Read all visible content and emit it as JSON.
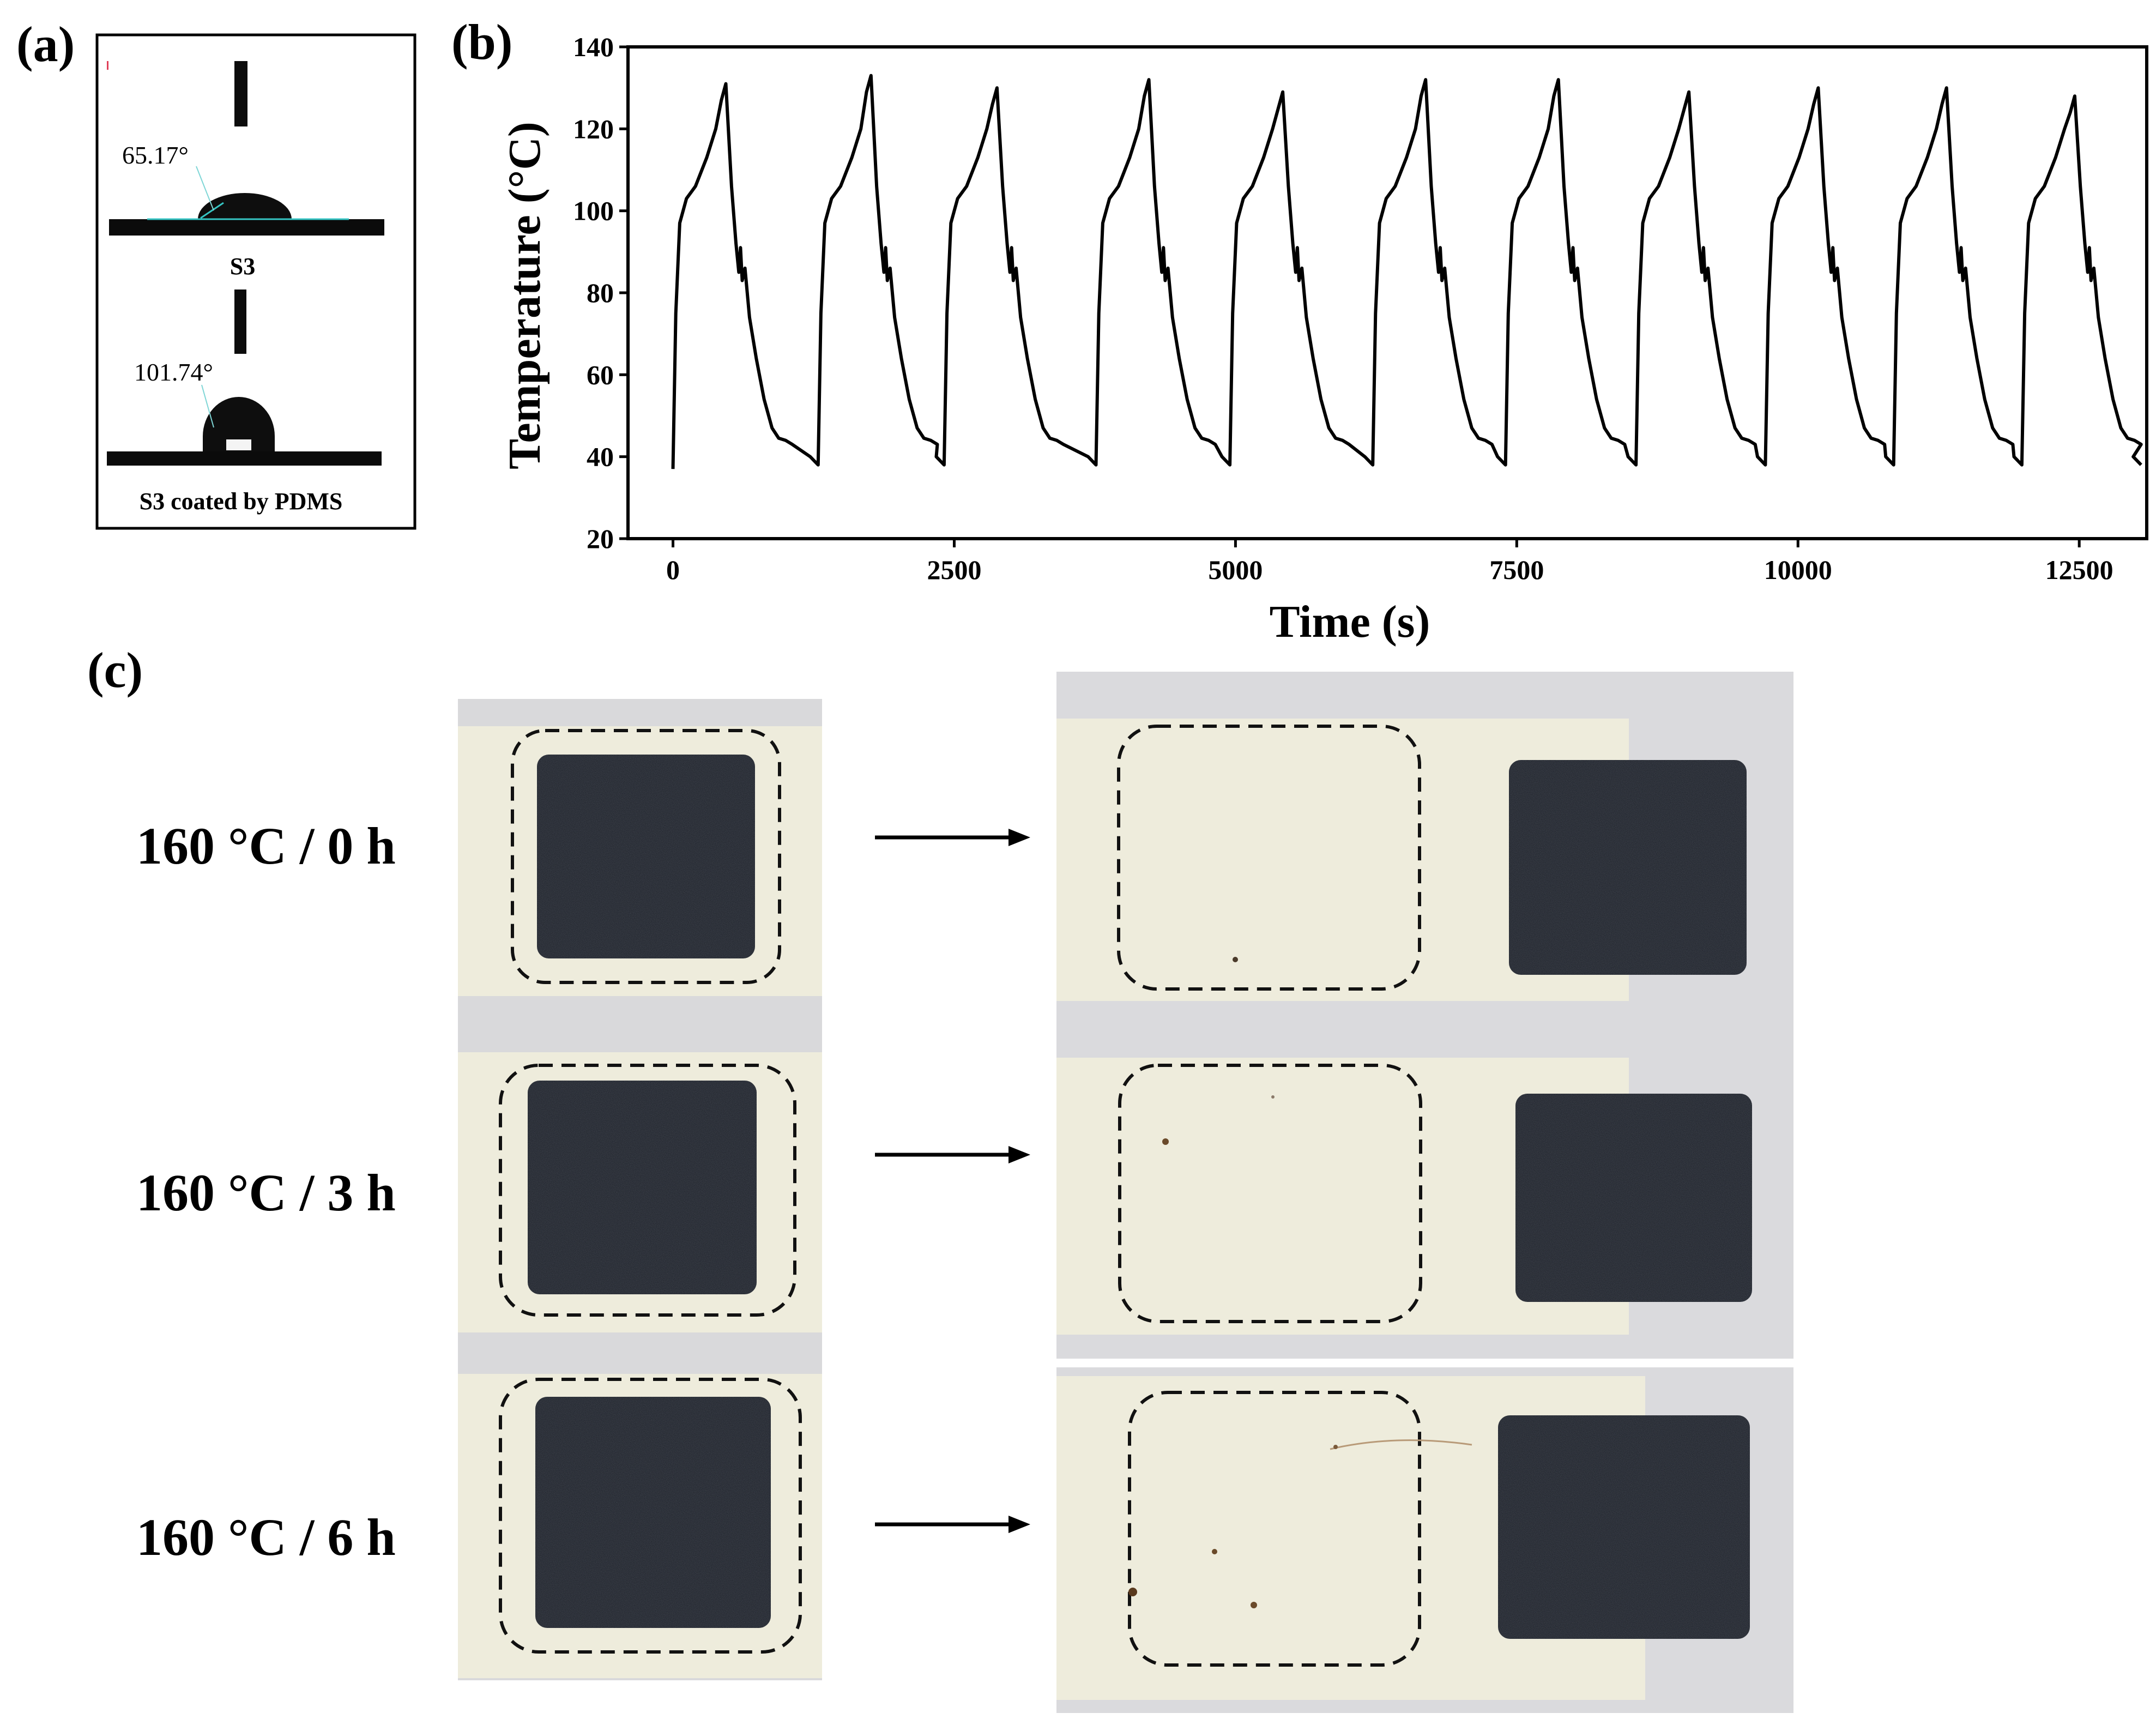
{
  "panel_labels": {
    "a": "(a)",
    "b": "(b)",
    "c": "(c)"
  },
  "panel_a": {
    "top_angle": "65.17°",
    "top_sample": "S3",
    "bottom_angle": "101.74°",
    "bottom_sample": "S3 coated by PDMS"
  },
  "chart_data": {
    "type": "line",
    "title": "",
    "xlabel": "Time (s)",
    "ylabel": "Temperature (°C)",
    "xlim": [
      -400,
      13100
    ],
    "ylim": [
      20,
      140
    ],
    "xticks": [
      0,
      2500,
      5000,
      7500,
      10000,
      12500
    ],
    "yticks": [
      20,
      40,
      60,
      80,
      100,
      120,
      140
    ],
    "grid": false,
    "series": [
      {
        "name": "",
        "color": "#000000",
        "cycle_starts": [
          0,
          1290,
          2410,
          3760,
          4950,
          6220,
          7400,
          8560,
          9710,
          10850,
          11990
        ],
        "cycle_peaks": [
          131,
          133,
          130,
          132,
          129,
          132,
          132,
          129,
          130,
          130,
          128
        ],
        "cycle_start_temps": [
          37,
          38,
          38,
          38,
          38,
          38,
          38,
          38,
          38,
          38,
          38
        ],
        "end_point": [
          13050,
          38
        ]
      }
    ]
  },
  "panel_c": {
    "rows": [
      {
        "condition": "160 °C / 0 h"
      },
      {
        "condition": "160 °C / 3 h"
      },
      {
        "condition": "160 °C / 6 h"
      }
    ],
    "colors": {
      "paper": "#eeecdc",
      "block": "#1b1f27",
      "background": "#d7d7d9"
    }
  }
}
